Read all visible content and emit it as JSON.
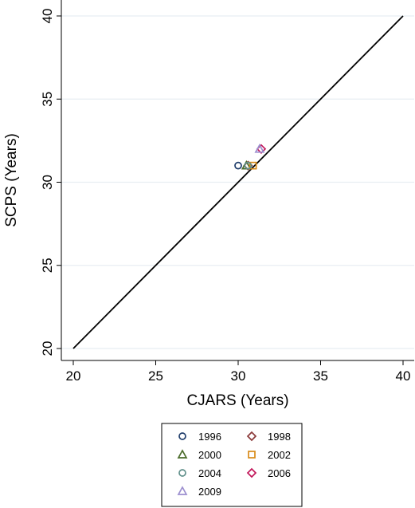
{
  "chart_data": {
    "type": "scatter",
    "xlabel": "CJARS (Years)",
    "ylabel": "SCPS (Years)",
    "xlim": [
      20,
      40
    ],
    "ylim": [
      20,
      40
    ],
    "xticks": [
      20,
      25,
      30,
      35,
      40
    ],
    "yticks": [
      20,
      25,
      30,
      35,
      40
    ],
    "grid": true,
    "legend_position": "bottom",
    "reference_line": {
      "from": [
        20,
        20
      ],
      "to": [
        40,
        40
      ]
    },
    "series": [
      {
        "name": "1996",
        "marker": "circle",
        "color": "#1f3d6b",
        "points": [
          [
            30.0,
            31.0
          ]
        ]
      },
      {
        "name": "1998",
        "marker": "diamond",
        "color": "#8b3a3a",
        "points": [
          [
            30.6,
            31.0
          ]
        ]
      },
      {
        "name": "2000",
        "marker": "triangle",
        "color": "#4a6b2a",
        "points": [
          [
            30.5,
            31.0
          ]
        ]
      },
      {
        "name": "2002",
        "marker": "square",
        "color": "#d98c1a",
        "points": [
          [
            30.9,
            31.0
          ]
        ]
      },
      {
        "name": "2004",
        "marker": "circle",
        "color": "#5f8f8a",
        "points": [
          [
            30.6,
            31.0
          ]
        ]
      },
      {
        "name": "2006",
        "marker": "diamond",
        "color": "#c2185b",
        "points": [
          [
            31.4,
            32.0
          ]
        ]
      },
      {
        "name": "2009",
        "marker": "triangle",
        "color": "#9c8fcf",
        "points": [
          [
            31.3,
            32.0
          ]
        ]
      }
    ]
  }
}
